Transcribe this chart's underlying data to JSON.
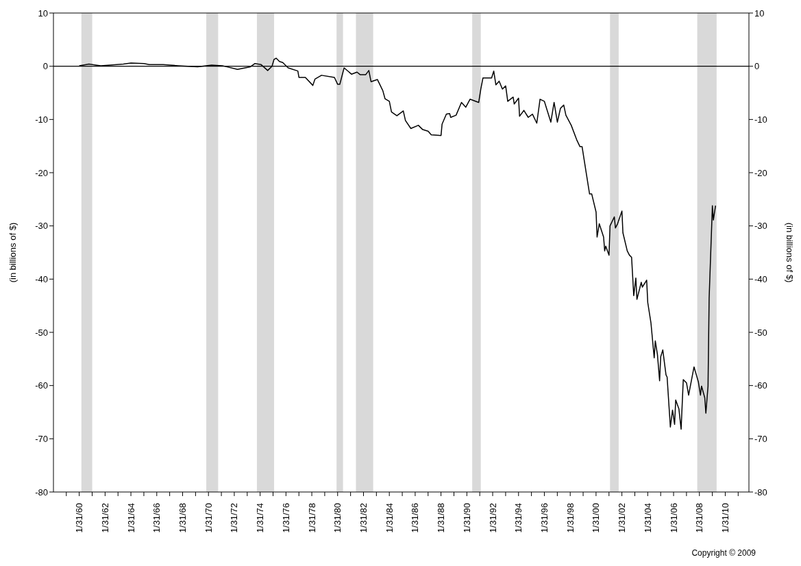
{
  "chart_data": {
    "type": "line",
    "ylabel": "(in billions of $)",
    "y2label": "(in billions of $)",
    "annotations": [
      "Copyright © 2009"
    ],
    "x": [
      "1960-02",
      "1960-11",
      "1961-10",
      "1963-07",
      "1964-02",
      "1965-02",
      "1965-07",
      "1966-08",
      "1967-10",
      "1969-04",
      "1970-05",
      "1971-03",
      "1972-05",
      "1973-05",
      "1973-09",
      "1974-03",
      "1974-09",
      "1975-01",
      "1975-03",
      "1975-05",
      "1975-08",
      "1975-11",
      "1976-04",
      "1977-01",
      "1977-02",
      "1977-08",
      "1978-03",
      "1978-05",
      "1978-11",
      "1979-11",
      "1980-02",
      "1980-04",
      "1980-08",
      "1981-03",
      "1981-08",
      "1981-11",
      "1982-04",
      "1982-07",
      "1982-09",
      "1983-03",
      "1983-08",
      "1983-10",
      "1984-02",
      "1984-04",
      "1984-09",
      "1985-03",
      "1985-05",
      "1985-10",
      "1986-05",
      "1986-09",
      "1987-02",
      "1987-05",
      "1988-02",
      "1988-03",
      "1988-07",
      "1988-10",
      "1988-11",
      "1989-04",
      "1989-09",
      "1990-01",
      "1990-05",
      "1991-01",
      "1991-03",
      "1991-05",
      "1992-01",
      "1992-03",
      "1992-05",
      "1992-08",
      "1992-11",
      "1993-02",
      "1993-04",
      "1993-09",
      "1993-10",
      "1994-02",
      "1994-03",
      "1994-07",
      "1994-11",
      "1995-03",
      "1995-07",
      "1995-10",
      "1996-02",
      "1996-04",
      "1996-08",
      "1996-11",
      "1997-02",
      "1997-05",
      "1997-08",
      "1997-10",
      "1998-03",
      "1998-08",
      "1998-11",
      "1999-01",
      "1999-04",
      "1999-08",
      "1999-10",
      "2000-02",
      "2000-03",
      "2000-05",
      "2000-09",
      "2000-10",
      "2000-11",
      "2001-02",
      "2001-03",
      "2001-07",
      "2001-08",
      "2001-10",
      "2002-02",
      "2002-03",
      "2002-07",
      "2002-09",
      "2002-11",
      "2003-01",
      "2003-03",
      "2003-04",
      "2003-08",
      "2003-09",
      "2004-01",
      "2004-02",
      "2004-05",
      "2004-08",
      "2004-09",
      "2004-11",
      "2005-01",
      "2005-02",
      "2005-04",
      "2005-07",
      "2005-08",
      "2005-11",
      "2006-01",
      "2006-03",
      "2006-04",
      "2006-07",
      "2006-09",
      "2006-11",
      "2007-02",
      "2007-04",
      "2007-09",
      "2008-01",
      "2008-03",
      "2008-04",
      "2008-07",
      "2008-08",
      "2008-10",
      "2008-11",
      "2009-02",
      "2009-03",
      "2009-05"
    ],
    "values": [
      0.1,
      0.4,
      0.1,
      0.4,
      0.6,
      0.5,
      0.3,
      0.3,
      0.1,
      -0.1,
      0.2,
      0.1,
      -0.6,
      -0.1,
      0.5,
      0.3,
      -0.8,
      0.0,
      1.3,
      1.5,
      0.9,
      0.7,
      -0.3,
      -0.9,
      -2.1,
      -2.1,
      -3.6,
      -2.4,
      -1.7,
      -2.1,
      -3.4,
      -3.4,
      -0.3,
      -1.5,
      -1.1,
      -1.6,
      -1.6,
      -0.8,
      -2.9,
      -2.5,
      -4.6,
      -6.1,
      -6.6,
      -8.6,
      -9.3,
      -8.4,
      -10.2,
      -11.7,
      -11.1,
      -11.9,
      -12.2,
      -12.9,
      -13.0,
      -10.9,
      -9.0,
      -8.9,
      -9.6,
      -9.2,
      -6.8,
      -7.7,
      -6.2,
      -6.8,
      -4.3,
      -2.2,
      -2.2,
      -0.9,
      -3.5,
      -2.8,
      -4.3,
      -3.7,
      -6.6,
      -5.8,
      -7.1,
      -6.0,
      -9.4,
      -8.3,
      -9.6,
      -9.0,
      -10.7,
      -6.2,
      -6.6,
      -7.9,
      -10.5,
      -6.8,
      -10.5,
      -7.9,
      -7.3,
      -9.2,
      -11.1,
      -13.8,
      -15.1,
      -15.1,
      -18.9,
      -24.0,
      -24.0,
      -27.4,
      -32.1,
      -29.6,
      -32.1,
      -34.7,
      -33.8,
      -35.5,
      -30.0,
      -28.3,
      -30.4,
      -29.6,
      -27.2,
      -31.3,
      -34.7,
      -35.5,
      -35.9,
      -43.1,
      -39.8,
      -43.8,
      -40.6,
      -41.5,
      -40.2,
      -44.4,
      -48.2,
      -54.8,
      -51.6,
      -54.2,
      -59.1,
      -54.6,
      -53.3,
      -58.0,
      -58.4,
      -67.8,
      -64.6,
      -67.3,
      -62.7,
      -64.4,
      -68.2,
      -58.9,
      -59.5,
      -61.8,
      -56.5,
      -59.3,
      -61.8,
      -60.1,
      -62.3,
      -65.2,
      -60.1,
      -43.6,
      -26.2,
      -28.9,
      -26.2
    ],
    "color": "#000000",
    "xlim": [
      "1958-02",
      "2011-12"
    ],
    "xticks": [
      {
        "value": "1959-01-31",
        "label": null
      },
      {
        "value": "1960-01-31",
        "label": "1/31/60"
      },
      {
        "value": "1961-01-31",
        "label": null
      },
      {
        "value": "1962-01-31",
        "label": "1/31/62"
      },
      {
        "value": "1963-01-31",
        "label": null
      },
      {
        "value": "1964-01-31",
        "label": "1/31/64"
      },
      {
        "value": "1965-01-31",
        "label": null
      },
      {
        "value": "1966-01-31",
        "label": "1/31/66"
      },
      {
        "value": "1967-01-31",
        "label": null
      },
      {
        "value": "1968-01-31",
        "label": "1/31/68"
      },
      {
        "value": "1969-01-31",
        "label": null
      },
      {
        "value": "1970-01-31",
        "label": "1/31/70"
      },
      {
        "value": "1971-01-31",
        "label": null
      },
      {
        "value": "1972-01-31",
        "label": "1/31/72"
      },
      {
        "value": "1973-01-31",
        "label": null
      },
      {
        "value": "1974-01-31",
        "label": "1/31/74"
      },
      {
        "value": "1975-01-31",
        "label": null
      },
      {
        "value": "1976-01-31",
        "label": "1/31/76"
      },
      {
        "value": "1977-01-31",
        "label": null
      },
      {
        "value": "1978-01-31",
        "label": "1/31/78"
      },
      {
        "value": "1979-01-31",
        "label": null
      },
      {
        "value": "1980-01-31",
        "label": "1/31/80"
      },
      {
        "value": "1981-01-31",
        "label": null
      },
      {
        "value": "1982-01-31",
        "label": "1/31/82"
      },
      {
        "value": "1983-01-31",
        "label": null
      },
      {
        "value": "1984-01-31",
        "label": "1/31/84"
      },
      {
        "value": "1985-01-31",
        "label": null
      },
      {
        "value": "1986-01-31",
        "label": "1/31/86"
      },
      {
        "value": "1987-01-31",
        "label": null
      },
      {
        "value": "1988-01-31",
        "label": "1/31/88"
      },
      {
        "value": "1989-01-31",
        "label": null
      },
      {
        "value": "1990-01-31",
        "label": "1/31/90"
      },
      {
        "value": "1991-01-31",
        "label": null
      },
      {
        "value": "1992-01-31",
        "label": "1/31/92"
      },
      {
        "value": "1993-01-31",
        "label": null
      },
      {
        "value": "1994-01-31",
        "label": "1/31/94"
      },
      {
        "value": "1995-01-31",
        "label": null
      },
      {
        "value": "1996-01-31",
        "label": "1/31/96"
      },
      {
        "value": "1997-01-31",
        "label": null
      },
      {
        "value": "1998-01-31",
        "label": "1/31/98"
      },
      {
        "value": "1999-01-31",
        "label": null
      },
      {
        "value": "2000-01-31",
        "label": "1/31/00"
      },
      {
        "value": "2001-01-31",
        "label": null
      },
      {
        "value": "2002-01-31",
        "label": "1/31/02"
      },
      {
        "value": "2003-01-31",
        "label": null
      },
      {
        "value": "2004-01-31",
        "label": "1/31/04"
      },
      {
        "value": "2005-01-31",
        "label": null
      },
      {
        "value": "2006-01-31",
        "label": "1/31/06"
      },
      {
        "value": "2007-01-31",
        "label": null
      },
      {
        "value": "2008-01-31",
        "label": "1/31/08"
      },
      {
        "value": "2009-01-31",
        "label": null
      },
      {
        "value": "2010-01-31",
        "label": "1/31/10"
      },
      {
        "value": "2011-01-31",
        "label": null
      }
    ],
    "ylim": [
      -80,
      10
    ],
    "yticks": [
      -80,
      -70,
      -60,
      -50,
      -40,
      -30,
      -20,
      -10,
      0,
      10
    ],
    "y2lim": [
      -80,
      10
    ],
    "y2ticks": [
      -80,
      -70,
      -60,
      -50,
      -40,
      -30,
      -20,
      -10,
      0,
      10
    ],
    "ref_lines": [
      {
        "axis": "y",
        "value": 0,
        "color": "#000000"
      }
    ],
    "bands": [
      {
        "axis": "x",
        "from": "1960-04",
        "to": "1961-02",
        "color": "#d9d9d9"
      },
      {
        "axis": "x",
        "from": "1969-12",
        "to": "1970-11",
        "color": "#d9d9d9"
      },
      {
        "axis": "x",
        "from": "1973-11",
        "to": "1975-03",
        "color": "#d9d9d9"
      },
      {
        "axis": "x",
        "from": "1980-01",
        "to": "1980-07",
        "color": "#d9d9d9"
      },
      {
        "axis": "x",
        "from": "1981-07",
        "to": "1982-11",
        "color": "#d9d9d9"
      },
      {
        "axis": "x",
        "from": "1990-07",
        "to": "1991-03",
        "color": "#d9d9d9"
      },
      {
        "axis": "x",
        "from": "2001-03",
        "to": "2001-11",
        "color": "#d9d9d9"
      },
      {
        "axis": "x",
        "from": "2007-12",
        "to": "2009-06",
        "color": "#d9d9d9"
      }
    ]
  }
}
